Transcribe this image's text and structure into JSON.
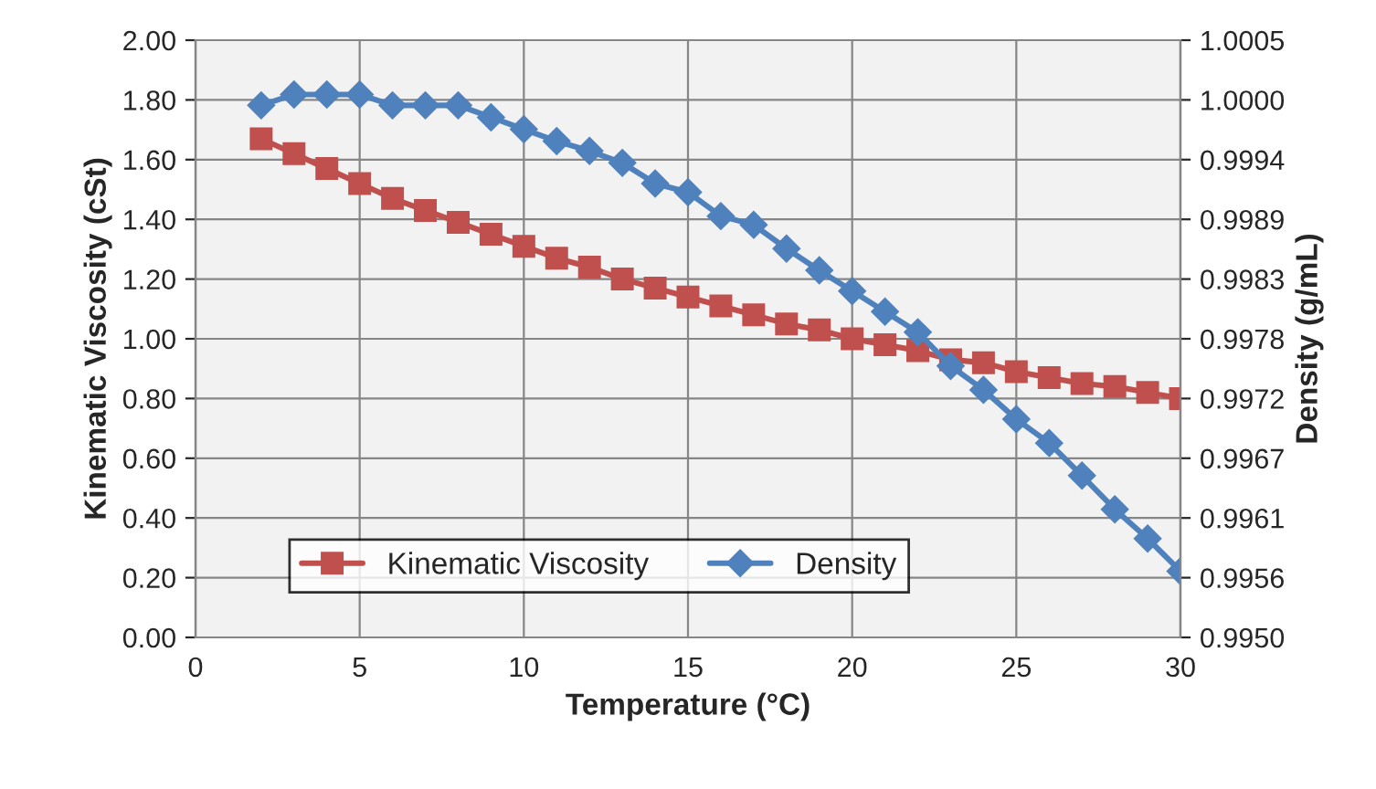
{
  "chart_data": {
    "type": "line",
    "xlabel": "Temperature (°C)",
    "ylabel": "Kinematic Viscosity (cSt)",
    "y2label": "Density (g/mL)",
    "x": [
      2,
      3,
      4,
      5,
      6,
      7,
      8,
      9,
      10,
      11,
      12,
      13,
      14,
      15,
      16,
      17,
      18,
      19,
      20,
      21,
      22,
      23,
      24,
      25,
      26,
      27,
      28,
      29,
      30
    ],
    "series": [
      {
        "name": "Kinematic Viscosity",
        "color": "#c0504d",
        "marker": "square",
        "values": [
          1.67,
          1.62,
          1.57,
          1.52,
          1.47,
          1.43,
          1.39,
          1.35,
          1.31,
          1.27,
          1.24,
          1.2,
          1.17,
          1.14,
          1.11,
          1.08,
          1.05,
          1.03,
          1.0,
          0.98,
          0.96,
          0.93,
          0.92,
          0.89,
          0.87,
          0.85,
          0.84,
          0.82,
          0.8
        ]
      },
      {
        "name": "Density",
        "color": "#4f81bd",
        "marker": "diamond",
        "axis": "y2",
        "values": [
          0.9999,
          1.0,
          1.0,
          1.0,
          0.9999,
          0.9999,
          0.9999,
          0.99979,
          0.99968,
          0.99957,
          0.99948,
          0.99937,
          0.99918,
          0.9991,
          0.99888,
          0.9988,
          0.99858,
          0.99838,
          0.99819,
          0.998,
          0.99781,
          0.9975,
          0.99728,
          0.99701,
          0.99679,
          0.99649,
          0.99618,
          0.99591,
          0.99561
        ]
      }
    ],
    "xlim": [
      0,
      30
    ],
    "xticks": [
      0,
      5,
      10,
      15,
      20,
      25,
      30
    ],
    "ylim": [
      0,
      2
    ],
    "yticks": [
      {
        "value": 0,
        "label": "0.00"
      },
      {
        "value": 0.2,
        "label": "0.20"
      },
      {
        "value": 0.4,
        "label": "0.40"
      },
      {
        "value": 0.6,
        "label": "0.60"
      },
      {
        "value": 0.8,
        "label": "0.80"
      },
      {
        "value": 1.0,
        "label": "1.00"
      },
      {
        "value": 1.2,
        "label": "1.20"
      },
      {
        "value": 1.4,
        "label": "1.40"
      },
      {
        "value": 1.6,
        "label": "1.60"
      },
      {
        "value": 1.8,
        "label": "1.80"
      },
      {
        "value": 2.0,
        "label": "2.00"
      }
    ],
    "y2lim": [
      0.995,
      1.0005
    ],
    "y2ticks": [
      {
        "value": 0.995,
        "label": "0.9950"
      },
      {
        "value": 0.99555,
        "label": "0.9956"
      },
      {
        "value": 0.9961,
        "label": "0.9961"
      },
      {
        "value": 0.99665,
        "label": "0.9967"
      },
      {
        "value": 0.9972,
        "label": "0.9972"
      },
      {
        "value": 0.99775,
        "label": "0.9978"
      },
      {
        "value": 0.9983,
        "label": "0.9983"
      },
      {
        "value": 0.99885,
        "label": "0.9989"
      },
      {
        "value": 0.9994,
        "label": "0.9994"
      },
      {
        "value": 0.99995,
        "label": "1.0000"
      },
      {
        "value": 1.0005,
        "label": "1.0005"
      }
    ],
    "grid": true,
    "legend": "bottom left",
    "line_style": "solid"
  }
}
